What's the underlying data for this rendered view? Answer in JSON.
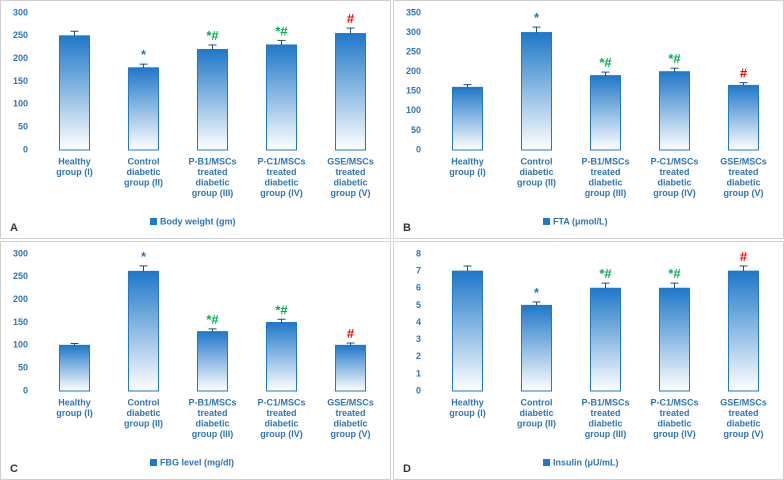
{
  "chart_data": [
    {
      "type": "bar",
      "panel": "A",
      "series_name": "Body weight (gm)",
      "color": "#1f78c8",
      "categories": [
        [
          "Healthy",
          "group (I)"
        ],
        [
          "Control",
          "diabetic",
          "group (II)"
        ],
        [
          "P-B1/MSCs",
          "treated",
          "diabetic",
          "group (III)"
        ],
        [
          "P-C1/MSCs",
          "treated",
          "diabetic",
          "group (IV)"
        ],
        [
          "GSE/MSCs",
          "treated",
          "diabetic",
          "group (V)"
        ]
      ],
      "values": [
        250,
        180,
        220,
        230,
        255
      ],
      "errors": [
        10,
        8,
        10,
        10,
        12
      ],
      "annotations": [
        null,
        [
          {
            "text": "*",
            "color": "#2e75b6"
          }
        ],
        [
          {
            "text": "*",
            "color": "#00b050"
          },
          {
            "text": "#",
            "color": "#00b050"
          }
        ],
        [
          {
            "text": "*",
            "color": "#00b050"
          },
          {
            "text": "#",
            "color": "#00b050"
          }
        ],
        [
          {
            "text": "#",
            "color": "#ff0000"
          }
        ]
      ],
      "ylim": [
        0,
        300
      ],
      "yticks": [
        0,
        50,
        100,
        150,
        200,
        250,
        300
      ]
    },
    {
      "type": "bar",
      "panel": "B",
      "series_name": "FTA (μmol/L)",
      "color": "#1f78c8",
      "categories": [
        [
          "Healthy",
          "group (I)"
        ],
        [
          "Control",
          "diabetic",
          "group (II)"
        ],
        [
          "P-B1/MSCs",
          "treated",
          "diabetic",
          "group (III)"
        ],
        [
          "P-C1/MSCs",
          "treated",
          "diabetic",
          "group (IV)"
        ],
        [
          "GSE/MSCs",
          "treated",
          "diabetic",
          "group (V)"
        ]
      ],
      "values": [
        160,
        300,
        190,
        200,
        165
      ],
      "errors": [
        7,
        14,
        9,
        9,
        7
      ],
      "annotations": [
        null,
        [
          {
            "text": "*",
            "color": "#2e75b6"
          }
        ],
        [
          {
            "text": "*",
            "color": "#00b050"
          },
          {
            "text": "#",
            "color": "#00b050"
          }
        ],
        [
          {
            "text": "*",
            "color": "#00b050"
          },
          {
            "text": "#",
            "color": "#00b050"
          }
        ],
        [
          {
            "text": "#",
            "color": "#ff0000"
          }
        ]
      ],
      "ylim": [
        0,
        350
      ],
      "yticks": [
        0,
        50,
        100,
        150,
        200,
        250,
        300,
        350
      ]
    },
    {
      "type": "bar",
      "panel": "C",
      "series_name": "FBG level (mg/dl)",
      "color": "#1f78c8",
      "categories": [
        [
          "Healthy",
          "group (I)"
        ],
        [
          "Control",
          "diabetic",
          "group (II)"
        ],
        [
          "P-B1/MSCs",
          "treated",
          "diabetic",
          "group (III)"
        ],
        [
          "P-C1/MSCs",
          "treated",
          "diabetic",
          "group (IV)"
        ],
        [
          "GSE/MSCs",
          "treated",
          "diabetic",
          "group (V)"
        ]
      ],
      "values": [
        100,
        262,
        130,
        150,
        100
      ],
      "errors": [
        4,
        12,
        6,
        7,
        5
      ],
      "annotations": [
        null,
        [
          {
            "text": "*",
            "color": "#2e75b6"
          }
        ],
        [
          {
            "text": "*",
            "color": "#00b050"
          },
          {
            "text": "#",
            "color": "#00b050"
          }
        ],
        [
          {
            "text": "*",
            "color": "#00b050"
          },
          {
            "text": "#",
            "color": "#00b050"
          }
        ],
        [
          {
            "text": "#",
            "color": "#ff0000"
          }
        ]
      ],
      "ylim": [
        0,
        300
      ],
      "yticks": [
        0,
        50,
        100,
        150,
        200,
        250,
        300
      ]
    },
    {
      "type": "bar",
      "panel": "D",
      "series_name": "Insulin (μU/mL)",
      "color": "#1f78c8",
      "categories": [
        [
          "Healthy",
          "group (I)"
        ],
        [
          "Control",
          "diabetic",
          "group (II)"
        ],
        [
          "P-B1/MSCs",
          "treated",
          "diabetic",
          "group (III)"
        ],
        [
          "P-C1/MSCs",
          "treated",
          "diabetic",
          "group (IV)"
        ],
        [
          "GSE/MSCs",
          "treated",
          "diabetic",
          "group (V)"
        ]
      ],
      "values": [
        7,
        5,
        6,
        6,
        7
      ],
      "errors": [
        0.3,
        0.2,
        0.3,
        0.3,
        0.3
      ],
      "annotations": [
        null,
        [
          {
            "text": "*",
            "color": "#2e75b6"
          }
        ],
        [
          {
            "text": "*",
            "color": "#00b050"
          },
          {
            "text": "#",
            "color": "#00b050"
          }
        ],
        [
          {
            "text": "*",
            "color": "#00b050"
          },
          {
            "text": "#",
            "color": "#00b050"
          }
        ],
        [
          {
            "text": "#",
            "color": "#ff0000"
          }
        ]
      ],
      "ylim": [
        0,
        8
      ],
      "yticks": [
        0,
        1,
        2,
        3,
        4,
        5,
        6,
        7,
        8
      ]
    }
  ]
}
